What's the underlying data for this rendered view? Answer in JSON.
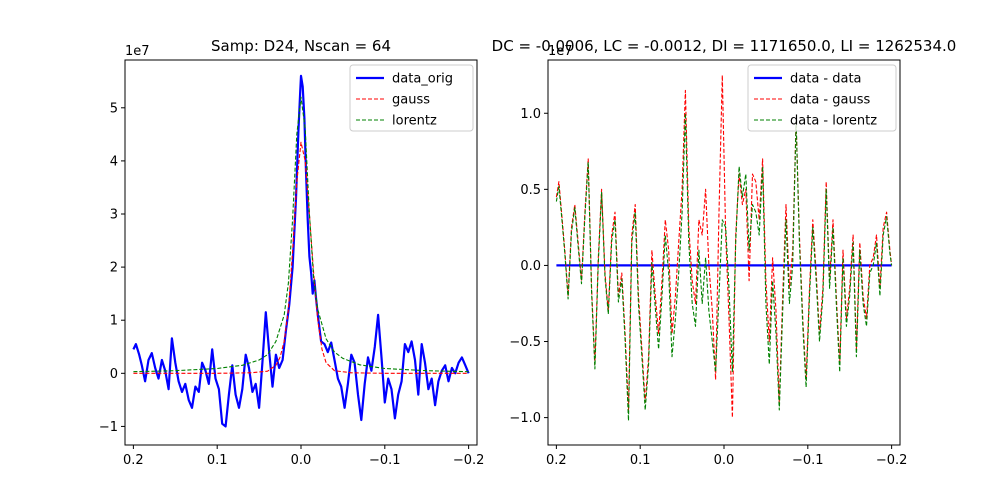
{
  "chart_data": [
    {
      "type": "line",
      "title": "Samp: D24, Nscan = 64",
      "xlabel": "",
      "ylabel": "",
      "xlim": [
        0.21,
        -0.21
      ],
      "ylim": [
        -13500000.0,
        59000000.0
      ],
      "y_offset_text": "1e7",
      "x_ticks": [
        0.2,
        0.1,
        0.0,
        -0.1,
        -0.2
      ],
      "x_tick_labels": [
        "0.2",
        "0.1",
        "0.0",
        "−0.1",
        "−0.2"
      ],
      "y_ticks": [
        -10000000.0,
        0,
        10000000.0,
        20000000.0,
        30000000.0,
        40000000.0,
        50000000.0
      ],
      "y_tick_labels": [
        "−1",
        "0",
        "1",
        "2",
        "3",
        "4",
        "5"
      ],
      "grid": false,
      "legend": "top-right",
      "series": [
        {
          "name": "data_orig",
          "color": "#0000ff",
          "style": "solid",
          "x": [
            0.2,
            0.197,
            0.193,
            0.19,
            0.186,
            0.182,
            0.178,
            0.174,
            0.17,
            0.166,
            0.162,
            0.158,
            0.154,
            0.15,
            0.146,
            0.142,
            0.138,
            0.134,
            0.13,
            0.126,
            0.122,
            0.118,
            0.114,
            0.11,
            0.106,
            0.102,
            0.098,
            0.094,
            0.09,
            0.086,
            0.082,
            0.078,
            0.074,
            0.07,
            0.066,
            0.062,
            0.058,
            0.054,
            0.05,
            0.046,
            0.042,
            0.038,
            0.034,
            0.03,
            0.026,
            0.022,
            0.018,
            0.014,
            0.01,
            0.006,
            0.003,
            0.001,
            0.0,
            -0.002,
            -0.004,
            -0.006,
            -0.008,
            -0.01,
            -0.012,
            -0.014,
            -0.016,
            -0.018,
            -0.02,
            -0.024,
            -0.028,
            -0.032,
            -0.036,
            -0.04,
            -0.044,
            -0.048,
            -0.052,
            -0.056,
            -0.06,
            -0.064,
            -0.068,
            -0.072,
            -0.076,
            -0.08,
            -0.084,
            -0.088,
            -0.092,
            -0.096,
            -0.1,
            -0.104,
            -0.108,
            -0.112,
            -0.116,
            -0.12,
            -0.124,
            -0.128,
            -0.132,
            -0.136,
            -0.14,
            -0.144,
            -0.148,
            -0.152,
            -0.156,
            -0.16,
            -0.164,
            -0.168,
            -0.172,
            -0.176,
            -0.18,
            -0.184,
            -0.188,
            -0.192,
            -0.196,
            -0.2
          ],
          "y": [
            4500000.0,
            5500000.0,
            3500000.0,
            1500000.0,
            -1500000.0,
            2500000.0,
            3800000.0,
            1000000.0,
            -1000000.0,
            2500000.0,
            500000.0,
            -3000000.0,
            6600000.0,
            2000000.0,
            -1500000.0,
            -3500000.0,
            -2000000.0,
            -5000000.0,
            -6500000.0,
            -2500000.0,
            -3500000.0,
            2000000.0,
            500000.0,
            -2000000.0,
            4500000.0,
            -1000000.0,
            -3000000.0,
            -9500000.0,
            -10000000.0,
            -4000000.0,
            1500000.0,
            -4000000.0,
            -6500000.0,
            -3000000.0,
            3500000.0,
            1000000.0,
            -3500000.0,
            -2000000.0,
            -6500000.0,
            2000000.0,
            11500000.0,
            4000000.0,
            -2500000.0,
            3500000.0,
            1000000.0,
            2500000.0,
            8000000.0,
            13000000.0,
            20000000.0,
            33000000.0,
            46000000.0,
            53000000.0,
            56000000.0,
            54000000.0,
            48000000.0,
            38000000.0,
            29000000.0,
            22000000.0,
            19000000.0,
            15000000.0,
            17500000.0,
            14000000.0,
            11000000.0,
            6000000.0,
            5500000.0,
            4000000.0,
            5800000.0,
            2500000.0,
            -1000000.0,
            -2500000.0,
            -6500000.0,
            -2000000.0,
            3500000.0,
            2000000.0,
            -4000000.0,
            -8800000.0,
            -2000000.0,
            3000000.0,
            500000.0,
            5000000.0,
            11000000.0,
            3000000.0,
            -5500000.0,
            -1000000.0,
            -3000000.0,
            -8500000.0,
            -4000000.0,
            -1500000.0,
            5500000.0,
            4000000.0,
            6000000.0,
            2500000.0,
            -4000000.0,
            5500000.0,
            2000000.0,
            -3000000.0,
            -1000000.0,
            -6000000.0,
            -1500000.0,
            500000.0,
            1500000.0,
            -1500000.0,
            1000000.0,
            0.0,
            2000000.0,
            3000000.0,
            1500000.0,
            0.0
          ]
        },
        {
          "name": "gauss",
          "color": "#ff0000",
          "style": "dashed",
          "x": [
            0.2,
            0.1,
            0.06,
            0.04,
            0.03,
            0.025,
            0.02,
            0.015,
            0.01,
            0.005,
            0.0,
            -0.005,
            -0.01,
            -0.015,
            -0.02,
            -0.025,
            -0.03,
            -0.04,
            -0.06,
            -0.1,
            -0.2
          ],
          "y": [
            0,
            0,
            100000.0,
            400000.0,
            1500000.0,
            3000000.0,
            6000000.0,
            12000000.0,
            23000000.0,
            36000000.0,
            43500000.0,
            40000000.0,
            30000000.0,
            19000000.0,
            10000000.0,
            4500000.0,
            2000000.0,
            500000.0,
            100000.0,
            0,
            0
          ]
        },
        {
          "name": "lorentz",
          "color": "#008000",
          "style": "dashed",
          "x": [
            0.2,
            0.15,
            0.1,
            0.07,
            0.05,
            0.04,
            0.03,
            0.02,
            0.015,
            0.01,
            0.005,
            0.0,
            -0.005,
            -0.01,
            -0.015,
            -0.02,
            -0.03,
            -0.04,
            -0.05,
            -0.07,
            -0.1,
            -0.15,
            -0.2
          ],
          "y": [
            300000.0,
            500000.0,
            900000.0,
            1500000.0,
            2500000.0,
            3500000.0,
            6000000.0,
            11000000.0,
            17000000.0,
            29000000.0,
            45000000.0,
            52000000.0,
            46000000.0,
            30000000.0,
            18000000.0,
            12000000.0,
            6500000.0,
            4000000.0,
            2800000.0,
            1600000.0,
            900000.0,
            500000.0,
            300000.0
          ]
        }
      ]
    },
    {
      "type": "line",
      "title": "DC = -0.0006, LC = -0.0012, DI = 1171650.0, LI = 1262534.0",
      "xlabel": "",
      "ylabel": "",
      "xlim": [
        0.21,
        -0.21
      ],
      "ylim": [
        -11800000.0,
        13500000.0
      ],
      "y_offset_text": "1e7",
      "x_ticks": [
        0.2,
        0.1,
        0.0,
        -0.1,
        -0.2
      ],
      "x_tick_labels": [
        "0.2",
        "0.1",
        "0.0",
        "−0.1",
        "−0.2"
      ],
      "y_ticks": [
        -10000000.0,
        -5000000.0,
        0,
        5000000.0,
        10000000.0
      ],
      "y_tick_labels": [
        "−1.0",
        "−0.5",
        "0.0",
        "0.5",
        "1.0"
      ],
      "grid": false,
      "legend": "top-right",
      "series": [
        {
          "name": "data - data",
          "color": "#0000ff",
          "style": "solid",
          "x": [
            0.2,
            -0.2
          ],
          "y": [
            0,
            0
          ]
        },
        {
          "name": "data - gauss",
          "color": "#ff0000",
          "style": "dashed",
          "x": [
            0.2,
            0.197,
            0.193,
            0.19,
            0.186,
            0.182,
            0.178,
            0.174,
            0.17,
            0.166,
            0.162,
            0.158,
            0.154,
            0.15,
            0.146,
            0.142,
            0.138,
            0.134,
            0.13,
            0.126,
            0.122,
            0.118,
            0.114,
            0.11,
            0.106,
            0.102,
            0.098,
            0.094,
            0.09,
            0.086,
            0.082,
            0.078,
            0.074,
            0.07,
            0.066,
            0.062,
            0.058,
            0.054,
            0.05,
            0.046,
            0.042,
            0.038,
            0.034,
            0.03,
            0.026,
            0.022,
            0.018,
            0.014,
            0.01,
            0.006,
            0.002,
            -0.002,
            -0.006,
            -0.01,
            -0.014,
            -0.018,
            -0.022,
            -0.026,
            -0.03,
            -0.034,
            -0.038,
            -0.042,
            -0.046,
            -0.05,
            -0.054,
            -0.058,
            -0.062,
            -0.066,
            -0.07,
            -0.074,
            -0.078,
            -0.082,
            -0.086,
            -0.09,
            -0.094,
            -0.098,
            -0.102,
            -0.106,
            -0.11,
            -0.114,
            -0.118,
            -0.122,
            -0.126,
            -0.13,
            -0.134,
            -0.138,
            -0.142,
            -0.146,
            -0.15,
            -0.154,
            -0.158,
            -0.162,
            -0.166,
            -0.17,
            -0.174,
            -0.178,
            -0.182,
            -0.186,
            -0.19,
            -0.194,
            -0.198,
            -0.2
          ],
          "y": [
            4500000.0,
            5500000.0,
            3000000.0,
            1000000.0,
            -2000000.0,
            2500000.0,
            4000000.0,
            1500000.0,
            -1000000.0,
            3500000.0,
            7000000.0,
            -1500000.0,
            -6500000.0,
            500000.0,
            5000000.0,
            -500000.0,
            -3000000.0,
            2000000.0,
            3500000.0,
            -2000000.0,
            -500000.0,
            -4500000.0,
            -9500000.0,
            2000000.0,
            4000000.0,
            -2000000.0,
            -5500000.0,
            -9000000.0,
            -6000000.0,
            1000000.0,
            -2000000.0,
            -4500000.0,
            -1000000.0,
            3000000.0,
            1000000.0,
            -4500000.0,
            -2000000.0,
            1500000.0,
            5000000.0,
            11500000.0,
            2500000.0,
            -1000000.0,
            -2500000.0,
            3000000.0,
            2000000.0,
            5000000.0,
            0.0,
            -3000000.0,
            -7500000.0,
            3500000.0,
            12500000.0,
            2000000.0,
            -3500000.0,
            -10000000.0,
            2000000.0,
            6000000.0,
            4000000.0,
            5000000.0,
            -1000000.0,
            6000000.0,
            5500000.0,
            3000000.0,
            7000000.0,
            -1000000.0,
            -5000000.0,
            500000.0,
            -3000000.0,
            -9000000.0,
            -2000000.0,
            4000000.0,
            -1500000.0,
            1000000.0,
            9500000.0,
            2000000.0,
            -3500000.0,
            -7500000.0,
            -1500000.0,
            3000000.0,
            -500000.0,
            -4500000.0,
            -1500000.0,
            5500000.0,
            -1000000.0,
            3000000.0,
            -2000000.0,
            -6500000.0,
            1000000.0,
            -3500000.0,
            -1500000.0,
            2000000.0,
            -5500000.0,
            1500000.0,
            -2000000.0,
            -3500000.0,
            0.0,
            500000.0,
            2000000.0,
            -1500000.0,
            2500000.0,
            3500000.0,
            1000000.0,
            0.0
          ]
        },
        {
          "name": "data - lorentz",
          "color": "#008000",
          "style": "dashed",
          "x": [
            0.2,
            0.197,
            0.193,
            0.19,
            0.186,
            0.182,
            0.178,
            0.174,
            0.17,
            0.166,
            0.162,
            0.158,
            0.154,
            0.15,
            0.146,
            0.142,
            0.138,
            0.134,
            0.13,
            0.126,
            0.122,
            0.118,
            0.114,
            0.11,
            0.106,
            0.102,
            0.098,
            0.094,
            0.09,
            0.086,
            0.082,
            0.078,
            0.074,
            0.07,
            0.066,
            0.062,
            0.058,
            0.054,
            0.05,
            0.046,
            0.042,
            0.038,
            0.034,
            0.03,
            0.026,
            0.022,
            0.018,
            0.014,
            0.01,
            0.006,
            0.002,
            -0.002,
            -0.006,
            -0.01,
            -0.014,
            -0.018,
            -0.022,
            -0.026,
            -0.03,
            -0.034,
            -0.038,
            -0.042,
            -0.046,
            -0.05,
            -0.054,
            -0.058,
            -0.062,
            -0.066,
            -0.07,
            -0.074,
            -0.078,
            -0.082,
            -0.086,
            -0.09,
            -0.094,
            -0.098,
            -0.102,
            -0.106,
            -0.11,
            -0.114,
            -0.118,
            -0.122,
            -0.126,
            -0.13,
            -0.134,
            -0.138,
            -0.142,
            -0.146,
            -0.15,
            -0.154,
            -0.158,
            -0.162,
            -0.166,
            -0.17,
            -0.174,
            -0.178,
            -0.182,
            -0.186,
            -0.19,
            -0.194,
            -0.198,
            -0.2
          ],
          "y": [
            4200000.0,
            5200000.0,
            2800000.0,
            800000.0,
            -2200000.0,
            2200000.0,
            3800000.0,
            1200000.0,
            -1200000.0,
            3200000.0,
            6800000.0,
            -1800000.0,
            -6800000.0,
            200000.0,
            4800000.0,
            -800000.0,
            -3200000.0,
            1600000.0,
            3000000.0,
            -2400000.0,
            -900000.0,
            -4900000.0,
            -10200000.0,
            1500000.0,
            3500000.0,
            -2600000.0,
            -6000000.0,
            -9500000.0,
            -6500000.0,
            200000.0,
            -2800000.0,
            -5500000.0,
            -2000000.0,
            2000000.0,
            -500000.0,
            -6000000.0,
            -3500000.0,
            -500000.0,
            3500000.0,
            10000000.0,
            1500000.0,
            -2500000.0,
            -4000000.0,
            1000000.0,
            -2500000.0,
            500000.0,
            -3000000.0,
            -5000000.0,
            -7000000.0,
            -2000000.0,
            3000000.0,
            2500000.0,
            -1500000.0,
            -7000000.0,
            1500000.0,
            6500000.0,
            4500000.0,
            6000000.0,
            1000000.0,
            4000000.0,
            3500000.0,
            2000000.0,
            6500000.0,
            -2500000.0,
            -6500000.0,
            -1000000.0,
            -4500000.0,
            -9500000.0,
            -3000000.0,
            3000000.0,
            -2500000.0,
            0.0,
            9500000.0,
            1500000.0,
            -4000000.0,
            -8000000.0,
            -2000000.0,
            2500000.0,
            -1000000.0,
            -5000000.0,
            -2000000.0,
            5000000.0,
            -1500000.0,
            2500000.0,
            -2500000.0,
            -7000000.0,
            500000.0,
            -4000000.0,
            -2000000.0,
            1500000.0,
            -6000000.0,
            1000000.0,
            -2500000.0,
            -4000000.0,
            -500000.0,
            0.0,
            1500000.0,
            -2000000.0,
            2000000.0,
            3200000.0,
            800000.0,
            0.0
          ]
        }
      ]
    }
  ]
}
